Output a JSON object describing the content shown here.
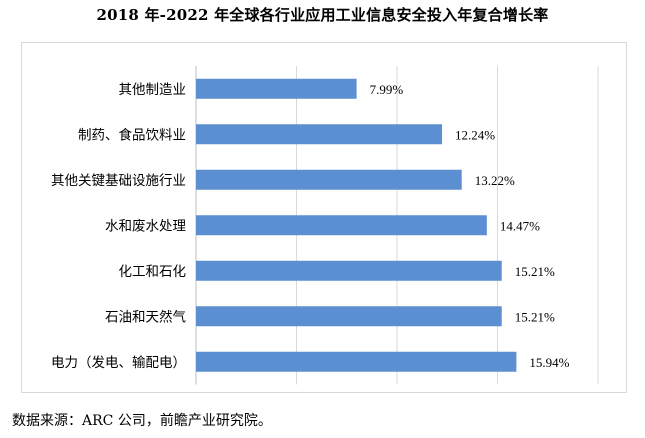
{
  "title": "2018 年-2022 年全球各行业应用工业信息安全投入年复合增长率",
  "source": "数据来源：ARC 公司，前瞻产业研究院。",
  "colors": {
    "bar": "#5b8fd1",
    "grid": "#d9d9d9",
    "frame": "#d9d9d9"
  },
  "chart_data": {
    "type": "bar",
    "orientation": "horizontal",
    "categories": [
      "其他制造业",
      "制药、食品饮料业",
      "其他关键基础设施行业",
      "水和废水处理",
      "化工和石化",
      "石油和天然气",
      "电力（发电、输配电）"
    ],
    "values": [
      7.99,
      12.24,
      13.22,
      14.47,
      15.21,
      15.21,
      15.94
    ],
    "data_labels": [
      "7.99%",
      "12.24%",
      "13.22%",
      "14.47%",
      "15.21%",
      "15.21%",
      "15.94%"
    ],
    "xlim": [
      0,
      20
    ],
    "grid": true,
    "title": "2018 年-2022 年全球各行业应用工业信息安全投入年复合增长率"
  }
}
